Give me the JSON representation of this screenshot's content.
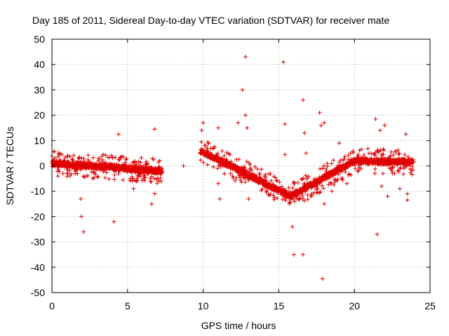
{
  "chart_data": {
    "type": "scatter",
    "title": "Day 185 of 2011, Sidereal Day-to-day VTEC variation (SDTVAR) for receiver mate",
    "xlabel": "GPS time / hours",
    "ylabel": "SDTVAR / TECUs",
    "xlim": [
      0,
      25
    ],
    "ylim": [
      -50,
      50
    ],
    "xticks": [
      "0",
      "5",
      "10",
      "15",
      "20",
      "25"
    ],
    "yticks": [
      "50",
      "40",
      "30",
      "20",
      "10",
      "0",
      "-10",
      "-20",
      "-30",
      "-40",
      "-50"
    ],
    "grid": true,
    "marker": "+",
    "series_color": "#e00000",
    "series": [
      {
        "name": "SDTVAR",
        "segments": [
          {
            "x0": 0.0,
            "x1": 7.3,
            "y_start": 1.0,
            "y_end": -2.0
          },
          {
            "x0": 9.8,
            "x1": 15.8,
            "y_start": 6.0,
            "y_end": -12.0
          },
          {
            "x0": 15.8,
            "x1": 20.0,
            "y_start": -12.0,
            "y_end": 2.0
          },
          {
            "x0": 20.0,
            "x1": 23.9,
            "y_start": 2.0,
            "y_end": 1.5
          }
        ],
        "outliers": [
          {
            "x": 1.9,
            "y": -13
          },
          {
            "x": 1.95,
            "y": -20
          },
          {
            "x": 2.1,
            "y": -26
          },
          {
            "x": 4.1,
            "y": -22
          },
          {
            "x": 4.4,
            "y": 12.5
          },
          {
            "x": 5.3,
            "y": -6
          },
          {
            "x": 5.4,
            "y": -9
          },
          {
            "x": 6.6,
            "y": -15
          },
          {
            "x": 6.8,
            "y": -11
          },
          {
            "x": 6.8,
            "y": 14.5
          },
          {
            "x": 9.9,
            "y": 14
          },
          {
            "x": 10.0,
            "y": 17
          },
          {
            "x": 11.0,
            "y": 15
          },
          {
            "x": 11.0,
            "y": -7
          },
          {
            "x": 11.1,
            "y": -13
          },
          {
            "x": 12.3,
            "y": 17
          },
          {
            "x": 12.6,
            "y": 30
          },
          {
            "x": 12.8,
            "y": 43
          },
          {
            "x": 12.8,
            "y": 20
          },
          {
            "x": 12.9,
            "y": 15
          },
          {
            "x": 13.0,
            "y": -13
          },
          {
            "x": 15.3,
            "y": 41
          },
          {
            "x": 15.4,
            "y": 16.5
          },
          {
            "x": 15.4,
            "y": 4.5
          },
          {
            "x": 15.9,
            "y": -24
          },
          {
            "x": 16.0,
            "y": -35
          },
          {
            "x": 16.6,
            "y": -35
          },
          {
            "x": 16.6,
            "y": 26
          },
          {
            "x": 16.7,
            "y": 13
          },
          {
            "x": 16.8,
            "y": 5
          },
          {
            "x": 17.7,
            "y": 21
          },
          {
            "x": 17.8,
            "y": 16
          },
          {
            "x": 18.0,
            "y": 17
          },
          {
            "x": 17.9,
            "y": -44.5
          },
          {
            "x": 18.0,
            "y": -15
          },
          {
            "x": 21.4,
            "y": 18.5
          },
          {
            "x": 21.5,
            "y": -27
          },
          {
            "x": 21.7,
            "y": 14
          },
          {
            "x": 21.8,
            "y": -8
          },
          {
            "x": 22.0,
            "y": 16
          },
          {
            "x": 22.2,
            "y": -12
          },
          {
            "x": 23.0,
            "y": -9
          },
          {
            "x": 23.4,
            "y": 12.5
          },
          {
            "x": 23.5,
            "y": -11
          },
          {
            "x": 23.5,
            "y": -13.5
          },
          {
            "x": 2.7,
            "y": -5
          },
          {
            "x": 0.4,
            "y": -4
          },
          {
            "x": 1.0,
            "y": -3
          },
          {
            "x": 8.7,
            "y": 0
          },
          {
            "x": 19.0,
            "y": 9
          },
          {
            "x": 18.5,
            "y": -10
          },
          {
            "x": 17.5,
            "y": -8
          },
          {
            "x": 19.5,
            "y": -7
          },
          {
            "x": 14.2,
            "y": -10
          }
        ]
      }
    ]
  }
}
